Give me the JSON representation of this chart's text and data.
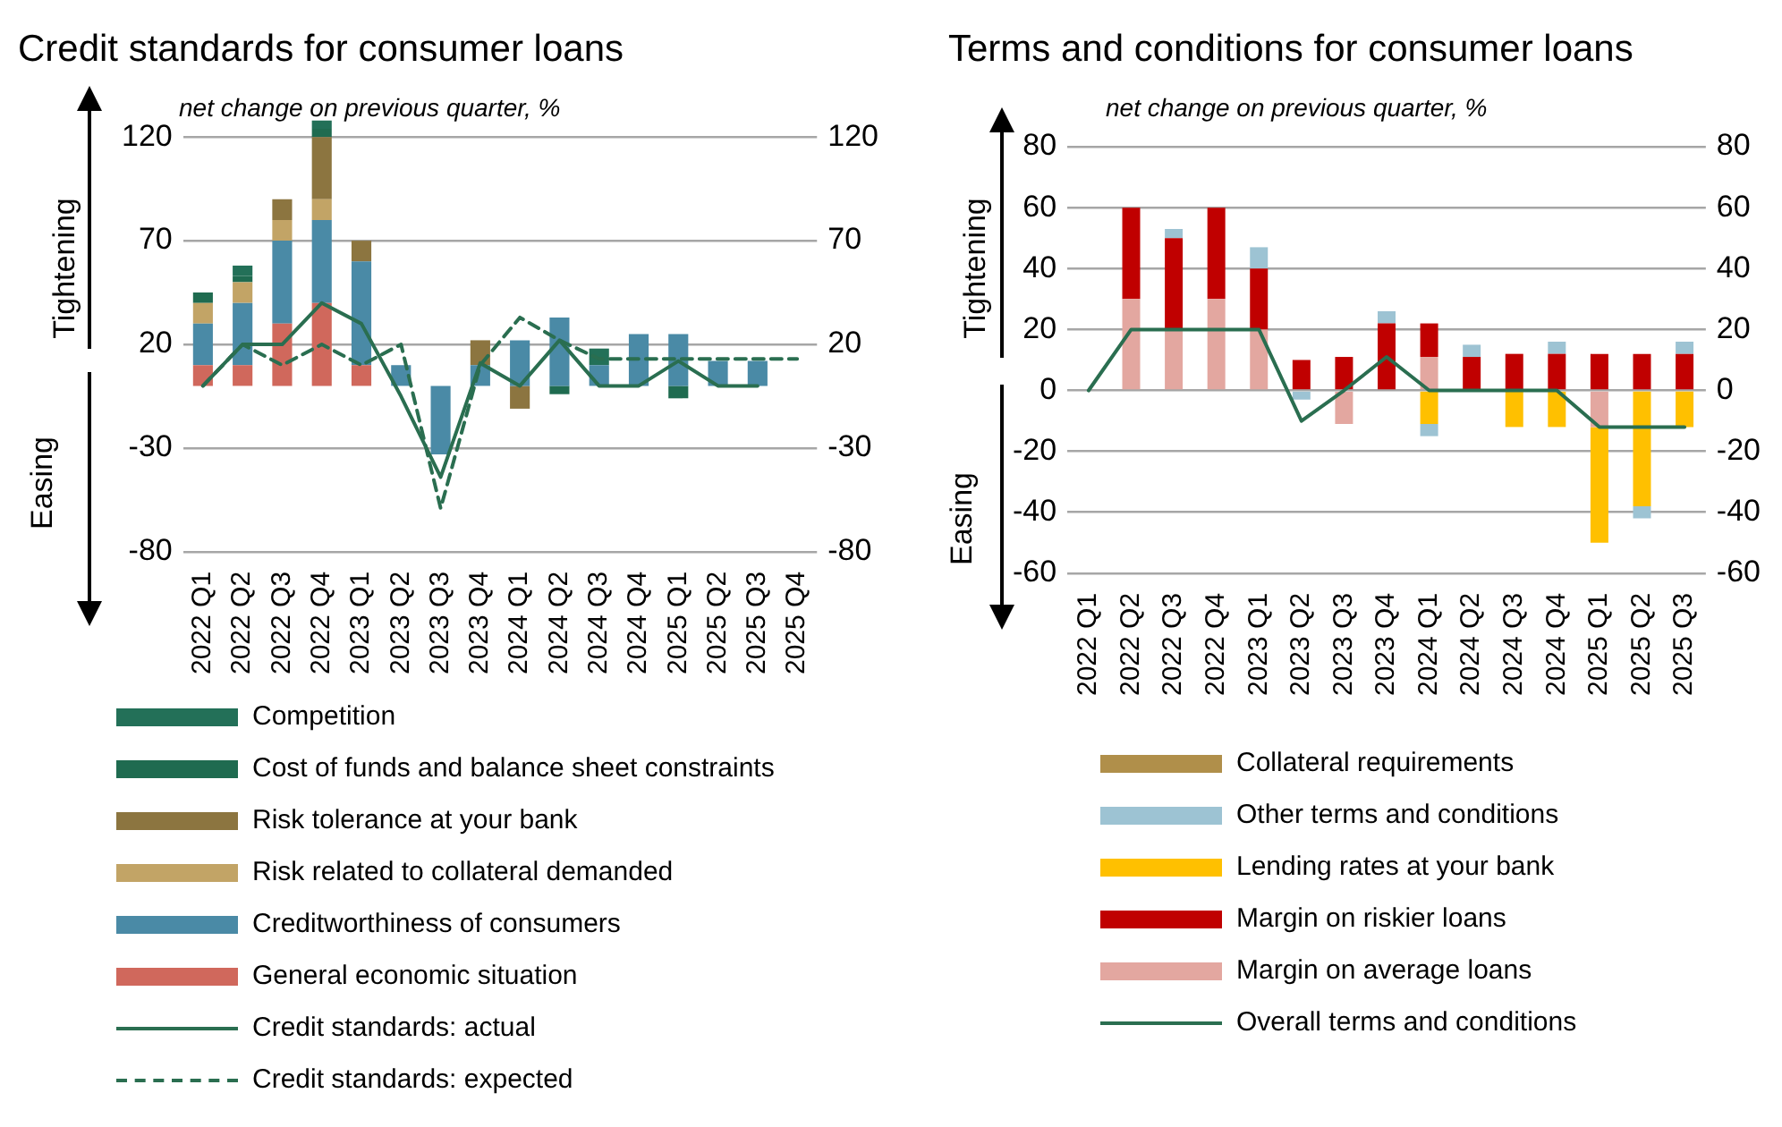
{
  "chart_data": [
    {
      "type": "bar",
      "title": "Credit standards for consumer loans",
      "subtitle": "net change on previous quarter, %",
      "annotations": [
        "Tightening",
        "Easing"
      ],
      "categories": [
        "2022 Q1",
        "2022 Q2",
        "2022 Q3",
        "2022 Q4",
        "2023 Q1",
        "2023 Q2",
        "2023 Q3",
        "2023 Q4",
        "2024 Q1",
        "2024 Q2",
        "2024 Q3",
        "2024 Q4",
        "2025 Q1",
        "2025 Q2",
        "2025 Q3",
        "2025 Q4"
      ],
      "stacked": true,
      "ylim": [
        -80,
        130
      ],
      "yticks": [
        -80,
        -30,
        20,
        70,
        120
      ],
      "y2lim": [
        -80,
        130
      ],
      "y2ticks": [
        -80,
        -30,
        20,
        70,
        120
      ],
      "grid": "y",
      "legend": "bottom",
      "marker": "none",
      "series": [
        {
          "name": "General economic situation",
          "color": "#d0685c",
          "values": [
            10,
            10,
            30,
            40,
            10,
            null,
            null,
            null,
            null,
            null,
            null,
            null,
            null,
            null,
            null,
            null
          ]
        },
        {
          "name": "Creditworthiness of consumers",
          "color": "#4a8aa6",
          "values": [
            20,
            30,
            40,
            40,
            50,
            10,
            -33,
            10,
            22,
            33,
            10,
            25,
            25,
            12,
            12,
            null
          ]
        },
        {
          "name": "Risk related to collateral demanded",
          "color": "#c2a466",
          "values": [
            10,
            10,
            10,
            10,
            null,
            null,
            null,
            null,
            null,
            null,
            null,
            null,
            null,
            null,
            null,
            null
          ]
        },
        {
          "name": "Risk tolerance at your bank",
          "color": "#8c7540",
          "values": [
            null,
            null,
            10,
            30,
            10,
            null,
            null,
            12,
            -11,
            null,
            null,
            null,
            null,
            null,
            null,
            null
          ]
        },
        {
          "name": "Cost of funds and balance sheet constraints",
          "color": "#1f6b50",
          "values": [
            5,
            3,
            null,
            4,
            null,
            null,
            null,
            null,
            null,
            -4,
            null,
            null,
            -6,
            null,
            null,
            null
          ]
        },
        {
          "name": "Competition",
          "color": "#237058",
          "values": [
            null,
            5,
            null,
            4,
            null,
            null,
            null,
            null,
            null,
            null,
            8,
            null,
            null,
            null,
            null,
            null
          ]
        },
        {
          "name": "Credit standards: actual",
          "type": "line",
          "color": "#2a6e50",
          "line_style": "solid",
          "values": [
            0,
            20,
            20,
            40,
            30,
            -5,
            -44,
            11,
            0,
            22,
            0,
            0,
            12,
            0,
            0,
            null
          ]
        },
        {
          "name": "Credit standards: expected",
          "type": "line",
          "color": "#2a6e50",
          "line_style": "dashed",
          "values": [
            0,
            20,
            10,
            20,
            10,
            20,
            -59,
            10,
            33,
            22,
            13,
            13,
            13,
            13,
            13,
            13
          ]
        }
      ]
    },
    {
      "type": "bar",
      "title": "Terms and conditions for consumer loans",
      "subtitle": "net change on previous quarter, %",
      "annotations": [
        "Tightening",
        "Easing"
      ],
      "categories": [
        "2022 Q1",
        "2022 Q2",
        "2022 Q3",
        "2022 Q4",
        "2023 Q1",
        "2023 Q2",
        "2023 Q3",
        "2023 Q4",
        "2024 Q1",
        "2024 Q2",
        "2024 Q3",
        "2024 Q4",
        "2025 Q1",
        "2025 Q2",
        "2025 Q3"
      ],
      "stacked": true,
      "ylim": [
        -60,
        80
      ],
      "yticks": [
        -60,
        -40,
        -20,
        0,
        20,
        40,
        60,
        80
      ],
      "y2lim": [
        -60,
        80
      ],
      "y2ticks": [
        -60,
        -40,
        -20,
        0,
        20,
        40,
        60,
        80
      ],
      "grid": "y",
      "legend": "bottom",
      "marker": "none",
      "series": [
        {
          "name": "Margin on average loans",
          "color": "#e3a7a0",
          "values": [
            null,
            30,
            20,
            30,
            20,
            null,
            -11,
            null,
            11,
            null,
            null,
            null,
            -12,
            null,
            null
          ]
        },
        {
          "name": "Margin on riskier loans",
          "color": "#c00000",
          "values": [
            null,
            30,
            30,
            30,
            20,
            10,
            11,
            22,
            11,
            11,
            12,
            12,
            12,
            12,
            12
          ]
        },
        {
          "name": "Lending rates at your bank",
          "color": "#ffc000",
          "values": [
            null,
            null,
            null,
            null,
            null,
            null,
            null,
            null,
            -11,
            null,
            -12,
            -12,
            -38,
            -38,
            -12
          ]
        },
        {
          "name": "Other terms and conditions",
          "color": "#9dc3d3",
          "values": [
            null,
            null,
            3,
            null,
            7,
            -3,
            null,
            4,
            -4,
            4,
            null,
            4,
            null,
            -4,
            4
          ]
        },
        {
          "name": "Collateral requirements",
          "color": "#b08f4a",
          "values": [
            null,
            null,
            null,
            null,
            null,
            null,
            null,
            null,
            null,
            null,
            null,
            null,
            null,
            null,
            null
          ]
        },
        {
          "name": "Overall terms and conditions",
          "type": "line",
          "color": "#2a6e50",
          "line_style": "solid",
          "values": [
            0,
            20,
            20,
            20,
            20,
            -10,
            0,
            11,
            0,
            0,
            0,
            0,
            -12,
            -12,
            -12
          ]
        }
      ]
    }
  ]
}
